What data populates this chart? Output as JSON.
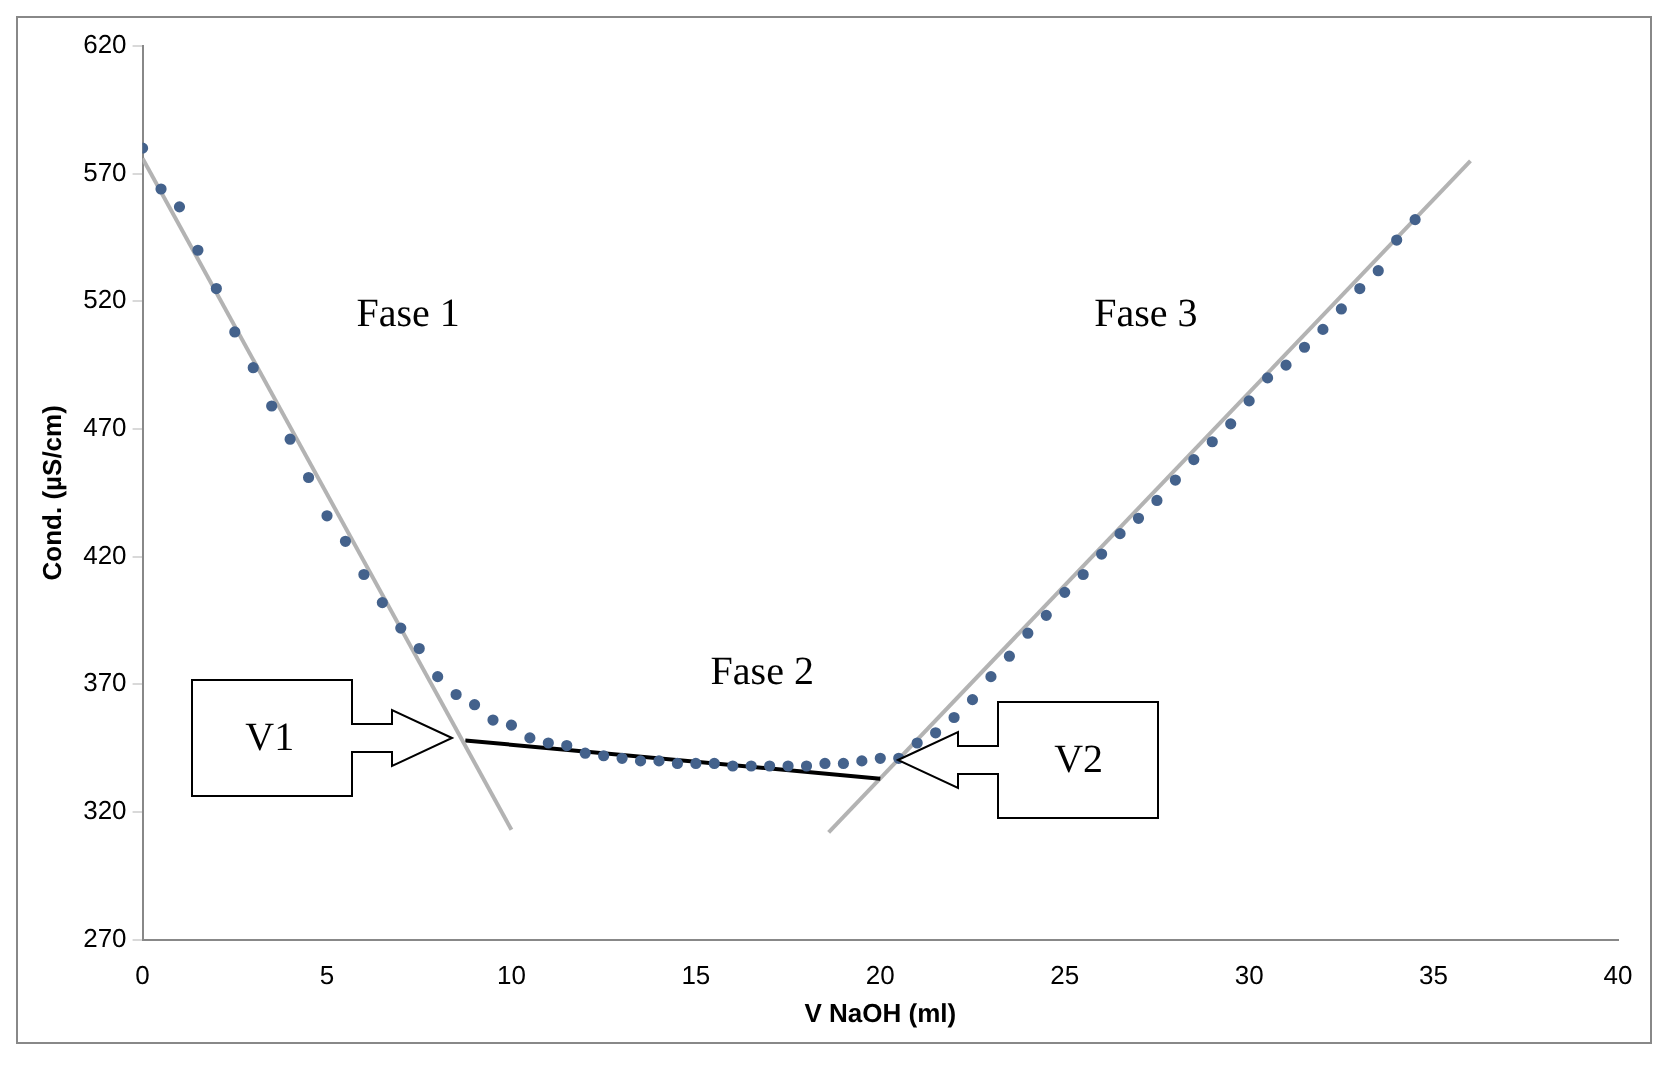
{
  "chart_data": {
    "type": "scatter",
    "xlabel": "V NaOH (ml)",
    "ylabel": "Cond. (µS/cm)",
    "xlim": [
      0,
      40
    ],
    "xticks": [
      0,
      5,
      10,
      15,
      20,
      25,
      30,
      35,
      40
    ],
    "ylim": [
      270,
      620
    ],
    "yticks": [
      270,
      320,
      370,
      420,
      470,
      520,
      570,
      620
    ],
    "grid": false,
    "legend": false,
    "marker": "circle",
    "series": [
      {
        "color": "#44628c",
        "x": [
          0,
          0.5,
          1,
          1.5,
          2,
          2.5,
          3,
          3.5,
          4,
          4.5,
          5,
          5.5,
          6,
          6.5,
          7,
          7.5,
          8,
          8.5,
          9,
          9.5,
          10,
          10.5,
          11,
          11.5,
          12,
          12.5,
          13,
          13.5,
          14,
          14.5,
          15,
          15.5,
          16,
          16.5,
          17,
          17.5,
          18,
          18.5,
          19,
          19.5,
          20,
          20.5,
          21,
          21.5,
          22,
          22.5,
          23,
          23.5,
          24,
          24.5,
          25,
          25.5,
          26,
          26.5,
          27,
          27.5,
          28,
          28.5,
          29,
          29.5,
          30,
          30.5,
          31,
          31.5,
          32,
          32.5,
          33,
          33.5,
          34,
          34.5
        ],
        "values": [
          580,
          564,
          557,
          540,
          525,
          508,
          494,
          479,
          466,
          451,
          436,
          426,
          413,
          402,
          392,
          384,
          373,
          366,
          362,
          356,
          354,
          349,
          347,
          346,
          343,
          342,
          341,
          340,
          340,
          339,
          339,
          339,
          338,
          338,
          338,
          338,
          338,
          339,
          339,
          340,
          341,
          341,
          347,
          351,
          357,
          364,
          373,
          381,
          390,
          397,
          406,
          413,
          421,
          429,
          435,
          442,
          450,
          458,
          465,
          472,
          481,
          490,
          495,
          502,
          509,
          517,
          525,
          532,
          544,
          552
        ]
      },
      {
        "type": "line",
        "marker": "none",
        "color": "#b3b3b3",
        "x": [
          0,
          10
        ],
        "values": [
          576,
          313
        ]
      },
      {
        "type": "line",
        "marker": "none",
        "color": "#000000",
        "x": [
          8.75,
          20
        ],
        "values": [
          348,
          333
        ]
      },
      {
        "type": "line",
        "marker": "none",
        "color": "#b3b3b3",
        "x": [
          18.6,
          36
        ],
        "values": [
          312,
          575
        ]
      }
    ],
    "annotations": [
      "Fase 1",
      "Fase 2",
      "Fase 3",
      "V1",
      "V2"
    ]
  }
}
